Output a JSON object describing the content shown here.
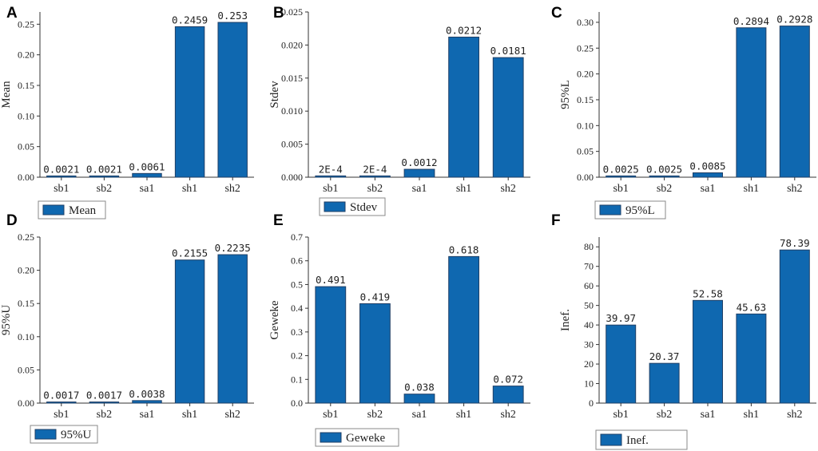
{
  "colors": {
    "bar": "#0F68B0"
  },
  "chart_data": [
    {
      "panel": "A",
      "type": "bar",
      "title": "",
      "categories": [
        "sb1",
        "sb2",
        "sa1",
        "sh1",
        "sh2"
      ],
      "values": [
        0.0021,
        0.0021,
        0.0061,
        0.2459,
        0.253
      ],
      "value_labels": [
        "0.0021",
        "0.0021",
        "0.0061",
        "0.2459",
        "0.253"
      ],
      "ylabel": "Mean",
      "legend": "Mean",
      "ylim": [
        0,
        0.27
      ],
      "yticks": [
        0,
        0.05,
        0.1,
        0.15,
        0.2,
        0.25
      ],
      "ytick_labels": [
        "0.00",
        "0.05",
        "0.10",
        "0.15",
        "0.20",
        "0.25"
      ]
    },
    {
      "panel": "B",
      "type": "bar",
      "title": "",
      "categories": [
        "sb1",
        "sb2",
        "sa1",
        "sh1",
        "sh2"
      ],
      "values": [
        0.0002,
        0.0002,
        0.0012,
        0.0212,
        0.0181
      ],
      "value_labels": [
        "2E-4",
        "2E-4",
        "0.0012",
        "0.0212",
        "0.0181"
      ],
      "ylabel": "Stdev",
      "legend": "Stdev",
      "ylim": [
        0,
        0.025
      ],
      "yticks": [
        0,
        0.005,
        0.01,
        0.015,
        0.02,
        0.025
      ],
      "ytick_labels": [
        "0.000",
        "0.005",
        "0.010",
        "0.015",
        "0.020",
        "0.025"
      ]
    },
    {
      "panel": "C",
      "type": "bar",
      "title": "",
      "categories": [
        "sb1",
        "sb2",
        "sa1",
        "sh1",
        "sh2"
      ],
      "values": [
        0.0025,
        0.0025,
        0.0085,
        0.2894,
        0.2928
      ],
      "value_labels": [
        "0.0025",
        "0.0025",
        "0.0085",
        "0.2894",
        "0.2928"
      ],
      "ylabel": "95%L",
      "legend": "95%L",
      "ylim": [
        0,
        0.32
      ],
      "yticks": [
        0,
        0.05,
        0.1,
        0.15,
        0.2,
        0.25,
        0.3
      ],
      "ytick_labels": [
        "0.00",
        "0.05",
        "0.10",
        "0.15",
        "0.20",
        "0.25",
        "0.30"
      ]
    },
    {
      "panel": "D",
      "type": "bar",
      "title": "",
      "categories": [
        "sb1",
        "sb2",
        "sa1",
        "sh1",
        "sh2"
      ],
      "values": [
        0.0017,
        0.0017,
        0.0038,
        0.2155,
        0.2235
      ],
      "value_labels": [
        "0.0017",
        "0.0017",
        "0.0038",
        "0.2155",
        "0.2235"
      ],
      "ylabel": "95%U",
      "legend": "95%U",
      "ylim": [
        0,
        0.25
      ],
      "yticks": [
        0,
        0.05,
        0.1,
        0.15,
        0.2,
        0.25
      ],
      "ytick_labels": [
        "0.00",
        "0.05",
        "0.10",
        "0.15",
        "0.20",
        "0.25"
      ]
    },
    {
      "panel": "E",
      "type": "bar",
      "title": "",
      "categories": [
        "sb1",
        "sb2",
        "sa1",
        "sh1",
        "sh2"
      ],
      "values": [
        0.491,
        0.419,
        0.038,
        0.618,
        0.072
      ],
      "value_labels": [
        "0.491",
        "0.419",
        "0.038",
        "0.618",
        "0.072"
      ],
      "ylabel": "Geweke",
      "legend": "Geweke",
      "ylim": [
        0,
        0.7
      ],
      "yticks": [
        0,
        0.1,
        0.2,
        0.3,
        0.4,
        0.5,
        0.6,
        0.7
      ],
      "ytick_labels": [
        "0.0",
        "0.1",
        "0.2",
        "0.3",
        "0.4",
        "0.5",
        "0.6",
        "0.7"
      ]
    },
    {
      "panel": "F",
      "type": "bar",
      "title": "",
      "categories": [
        "sb1",
        "sb2",
        "sa1",
        "sh1",
        "sh2"
      ],
      "values": [
        39.97,
        20.37,
        52.58,
        45.63,
        78.39
      ],
      "value_labels": [
        "39.97",
        "20.37",
        "52.58",
        "45.63",
        "78.39"
      ],
      "ylabel": "Inef.",
      "legend": "Inef.",
      "ylim": [
        0,
        85
      ],
      "yticks": [
        0,
        10,
        20,
        30,
        40,
        50,
        60,
        70,
        80
      ],
      "ytick_labels": [
        "0",
        "10",
        "20",
        "30",
        "40",
        "50",
        "60",
        "70",
        "80"
      ]
    }
  ]
}
